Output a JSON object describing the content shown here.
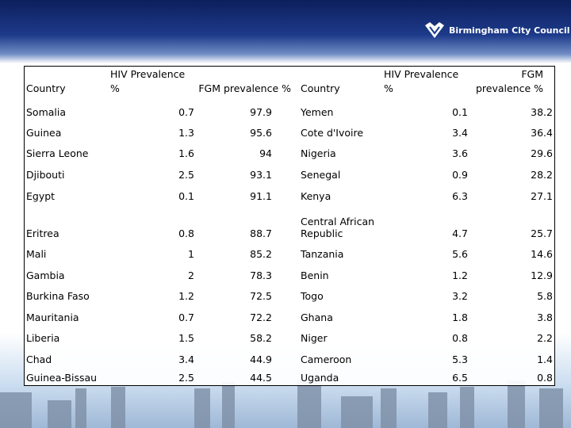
{
  "header": {
    "logo_text": "Birmingham City Council"
  },
  "table": {
    "columns": [
      "Country",
      "HIV Prevalence %",
      "FGM prevalence %",
      "Country",
      "HIV Prevalence %",
      "FGM prevalence %"
    ],
    "rows": [
      [
        "Somalia",
        "0.7",
        "97.9",
        "Yemen",
        "0.1",
        "38.2"
      ],
      [
        "Guinea",
        "1.3",
        "95.6",
        "Cote d'Ivoire",
        "3.4",
        "36.4"
      ],
      [
        "Sierra Leone",
        "1.6",
        "94",
        "Nigeria",
        "3.6",
        "29.6"
      ],
      [
        "Djibouti",
        "2.5",
        "93.1",
        "Senegal",
        "0.9",
        "28.2"
      ],
      [
        "Egypt",
        "0.1",
        "91.1",
        "Kenya",
        "6.3",
        "27.1"
      ],
      [
        "Eritrea",
        "0.8",
        "88.7",
        "Central African Republic",
        "4.7",
        "25.7"
      ],
      [
        "Mali",
        "1",
        "85.2",
        "Tanzania",
        "5.6",
        "14.6"
      ],
      [
        "Gambia",
        "2",
        "78.3",
        "Benin",
        "1.2",
        "12.9"
      ],
      [
        "Burkina Faso",
        "1.2",
        "72.5",
        "Togo",
        "3.2",
        "5.8"
      ],
      [
        "Mauritania",
        "0.7",
        "72.2",
        "Ghana",
        "1.8",
        "3.8"
      ],
      [
        "Liberia",
        "1.5",
        "58.2",
        "Niger",
        "0.8",
        "2.2"
      ],
      [
        "Chad",
        "3.4",
        "44.9",
        "Cameroon",
        "5.3",
        "1.4"
      ],
      [
        "Guinea-Bissau",
        "2.5",
        "44.5",
        "Uganda",
        "6.5",
        "0.8"
      ]
    ]
  }
}
